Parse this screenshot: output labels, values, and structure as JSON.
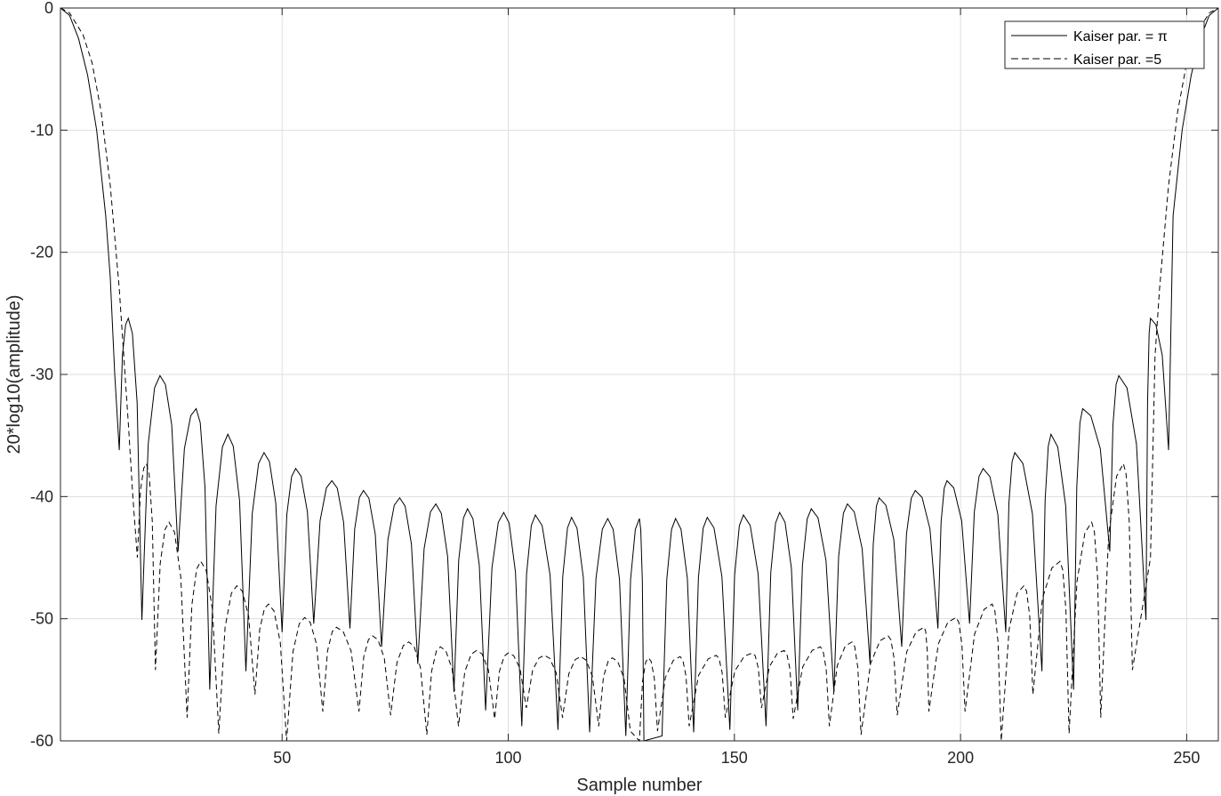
{
  "chart_data": {
    "type": "line",
    "xlabel": "Sample number",
    "ylabel": "20*log10(amplitude)",
    "xlim": [
      1,
      257
    ],
    "ylim": [
      -60,
      0
    ],
    "xticks": [
      50,
      100,
      150,
      200,
      250
    ],
    "yticks": [
      0,
      -10,
      -20,
      -30,
      -40,
      -50,
      -60
    ],
    "xtick_labels": [
      "50",
      "100",
      "150",
      "200",
      "250"
    ],
    "ytick_labels": [
      "0",
      "-10",
      "-20",
      "-30",
      "-40",
      "-50",
      "-60"
    ],
    "grid": true,
    "legend_position": "top-right",
    "colors": {
      "line": "#000000",
      "grid": "#dedede",
      "axis": "#262626"
    },
    "series": [
      {
        "name": "Kaiser  par.  =  π",
        "style": "solid",
        "mainlobe": [
          [
            1,
            0
          ],
          [
            3,
            -0.6
          ],
          [
            5,
            -2.5
          ],
          [
            7,
            -5.5
          ],
          [
            9,
            -10
          ],
          [
            11,
            -17
          ],
          [
            12,
            -22
          ],
          [
            13,
            -30
          ],
          [
            14,
            -36.2
          ]
        ],
        "sidelobe_peaks": [
          [
            16,
            -25.4
          ],
          [
            23,
            -30.1
          ],
          [
            31,
            -32.8
          ],
          [
            38,
            -34.9
          ],
          [
            46,
            -36.4
          ],
          [
            53,
            -37.7
          ],
          [
            61,
            -38.7
          ],
          [
            68,
            -39.5
          ],
          [
            76,
            -40.1
          ],
          [
            84,
            -40.6
          ],
          [
            91,
            -41.0
          ],
          [
            99,
            -41.3
          ],
          [
            106,
            -41.5
          ],
          [
            114,
            -41.7
          ],
          [
            122,
            -41.8
          ],
          [
            129,
            -41.8
          ],
          [
            137,
            -41.8
          ],
          [
            144,
            -41.7
          ],
          [
            152,
            -41.5
          ],
          [
            160,
            -41.3
          ],
          [
            167,
            -41.0
          ],
          [
            175,
            -40.6
          ],
          [
            182,
            -40.1
          ],
          [
            190,
            -39.5
          ],
          [
            197,
            -38.7
          ],
          [
            205,
            -37.7
          ],
          [
            212,
            -36.4
          ],
          [
            220,
            -34.9
          ],
          [
            227,
            -32.8
          ],
          [
            235,
            -30.1
          ],
          [
            242,
            -25.4
          ]
        ],
        "nulls": [
          [
            14,
            -36.2
          ],
          [
            19,
            -50.1
          ],
          [
            27,
            -44.5
          ],
          [
            34,
            -55.8
          ],
          [
            42,
            -54.3
          ],
          [
            50,
            -51.1
          ],
          [
            57,
            -50.4
          ],
          [
            65,
            -50.8
          ],
          [
            72,
            -52.3
          ],
          [
            80,
            -53.7
          ],
          [
            88,
            -56.0
          ],
          [
            95,
            -57.5
          ],
          [
            103,
            -58.8
          ],
          [
            111,
            -59.1
          ],
          [
            118,
            -59.3
          ],
          [
            126,
            -59.6
          ],
          [
            130,
            -60
          ],
          [
            134,
            -59.6
          ],
          [
            141,
            -59.3
          ],
          [
            149,
            -59.1
          ],
          [
            157,
            -58.8
          ],
          [
            164,
            -57.5
          ],
          [
            172,
            -56.0
          ],
          [
            180,
            -53.7
          ],
          [
            187,
            -52.3
          ],
          [
            195,
            -50.8
          ],
          [
            202,
            -50.4
          ],
          [
            210,
            -51.1
          ],
          [
            218,
            -54.3
          ],
          [
            225,
            -55.8
          ],
          [
            233,
            -44.5
          ],
          [
            241,
            -50.1
          ],
          [
            246,
            -36.2
          ]
        ]
      },
      {
        "name": "Kaiser par. =5",
        "style": "dashed",
        "mainlobe": [
          [
            1,
            0
          ],
          [
            3,
            -0.4
          ],
          [
            6,
            -2.2
          ],
          [
            8,
            -4.5
          ],
          [
            10,
            -8.5
          ],
          [
            12,
            -14.5
          ],
          [
            14,
            -23
          ],
          [
            15,
            -28.5
          ],
          [
            16,
            -34
          ],
          [
            17,
            -40
          ],
          [
            18,
            -45
          ]
        ],
        "sidelobe_peaks": [
          [
            20,
            -37.3
          ],
          [
            25,
            -42.1
          ],
          [
            32,
            -45.3
          ],
          [
            40,
            -47.3
          ],
          [
            47,
            -48.8
          ],
          [
            55,
            -49.9
          ],
          [
            62,
            -50.7
          ],
          [
            70,
            -51.4
          ],
          [
            78,
            -51.9
          ],
          [
            85,
            -52.3
          ],
          [
            93,
            -52.6
          ],
          [
            100,
            -52.8
          ],
          [
            108,
            -53.0
          ],
          [
            116,
            -53.1
          ],
          [
            123,
            -53.2
          ],
          [
            131,
            -53.2
          ],
          [
            138,
            -53.1
          ],
          [
            146,
            -53.0
          ],
          [
            154,
            -52.8
          ],
          [
            161,
            -52.6
          ],
          [
            169,
            -52.3
          ],
          [
            176,
            -51.9
          ],
          [
            184,
            -51.4
          ],
          [
            192,
            -50.7
          ],
          [
            199,
            -49.9
          ],
          [
            207,
            -48.8
          ],
          [
            214,
            -47.3
          ],
          [
            222,
            -45.3
          ],
          [
            229,
            -42.1
          ],
          [
            236,
            -37.3
          ]
        ],
        "nulls": [
          [
            18,
            -45.0
          ],
          [
            22,
            -54.2
          ],
          [
            29,
            -58.1
          ],
          [
            36,
            -59.4
          ],
          [
            44,
            -56.2
          ],
          [
            51,
            -60
          ],
          [
            59,
            -57.6
          ],
          [
            67,
            -57.6
          ],
          [
            74,
            -57.9
          ],
          [
            82,
            -59.5
          ],
          [
            89,
            -58.8
          ],
          [
            97,
            -58.2
          ],
          [
            104,
            -57.3
          ],
          [
            112,
            -58.1
          ],
          [
            120,
            -58.8
          ],
          [
            127,
            -59.2
          ],
          [
            129,
            -60
          ],
          [
            133,
            -59.2
          ],
          [
            140,
            -58.8
          ],
          [
            148,
            -58.1
          ],
          [
            156,
            -57.3
          ],
          [
            163,
            -58.2
          ],
          [
            171,
            -58.8
          ],
          [
            178,
            -59.5
          ],
          [
            186,
            -57.9
          ],
          [
            193,
            -57.6
          ],
          [
            201,
            -57.6
          ],
          [
            209,
            -60
          ],
          [
            216,
            -56.2
          ],
          [
            224,
            -59.4
          ],
          [
            231,
            -58.1
          ],
          [
            238,
            -54.2
          ],
          [
            242,
            -45.0
          ]
        ]
      }
    ]
  }
}
